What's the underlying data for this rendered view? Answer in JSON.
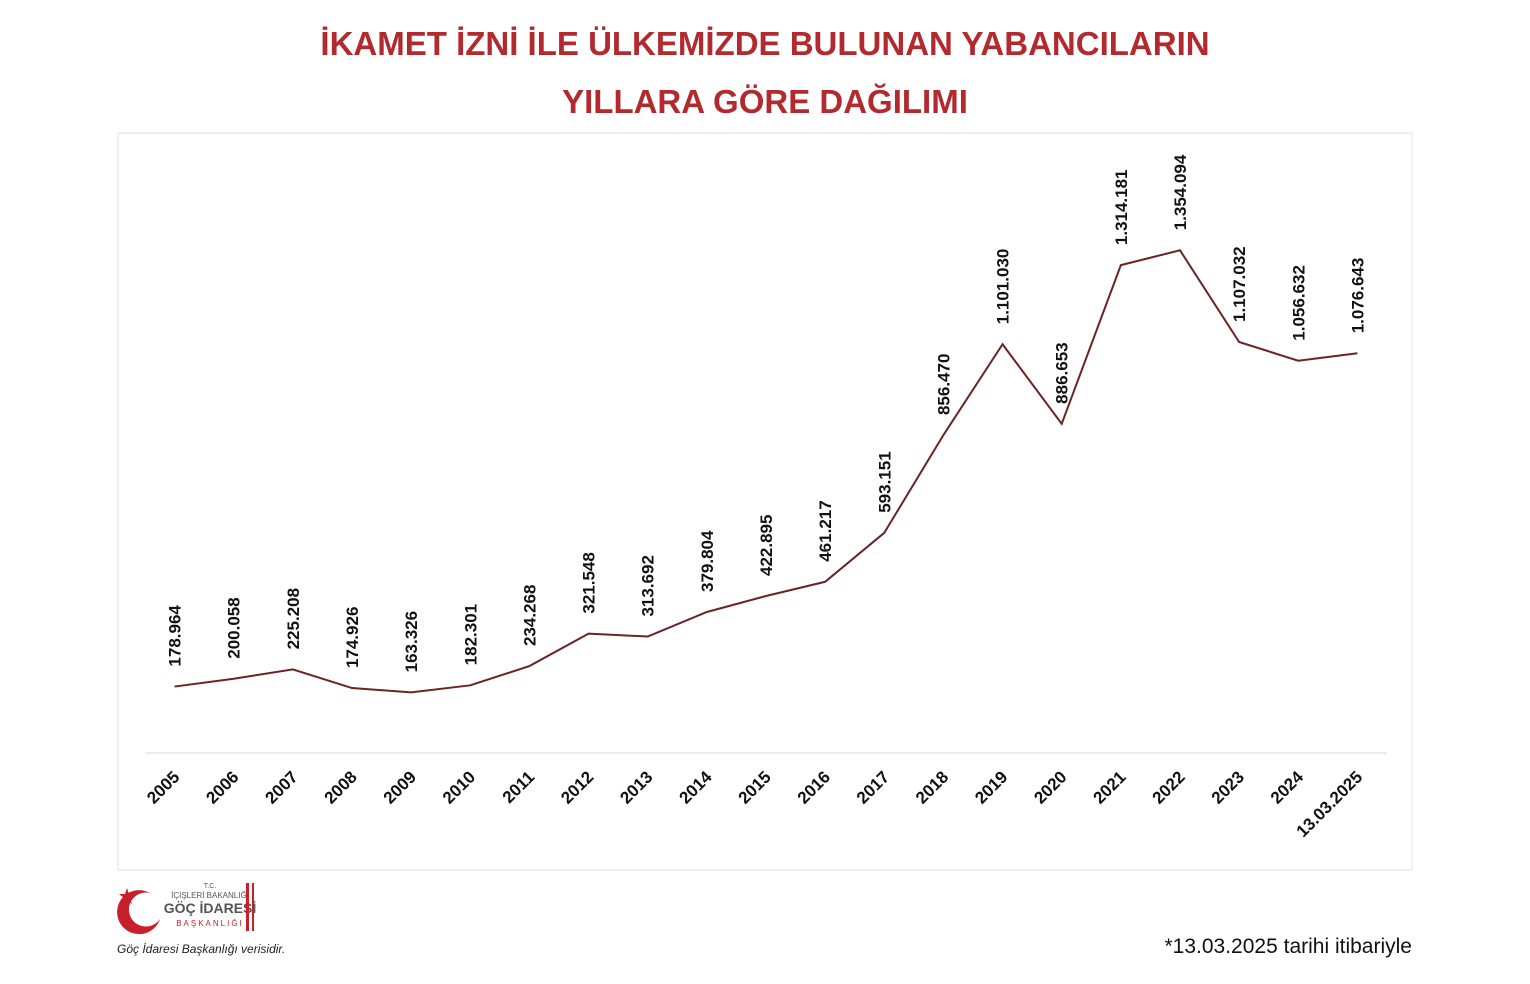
{
  "chart_data": {
    "type": "line",
    "title": [
      "İKAMET İZNİ İLE ÜLKEMİZDE BULUNAN YABANCILARIN",
      "YILLARA GÖRE DAĞILIMI"
    ],
    "categories": [
      "2005",
      "2006",
      "2007",
      "2008",
      "2009",
      "2010",
      "2011",
      "2012",
      "2013",
      "2014",
      "2015",
      "2016",
      "2017",
      "2018",
      "2019",
      "2020",
      "2021",
      "2022",
      "2023",
      "2024",
      "13.03.2025"
    ],
    "series": [
      {
        "color": "#6b2324",
        "values": [
          178964,
          200058,
          225208,
          174926,
          163326,
          182301,
          234268,
          321548,
          313692,
          379804,
          422895,
          461217,
          593151,
          856470,
          1101030,
          886653,
          1314181,
          1354094,
          1107032,
          1056632,
          1076643
        ],
        "value_labels": [
          "178.964",
          "200.058",
          "225.208",
          "174.926",
          "163.326",
          "182.301",
          "234.268",
          "321.548",
          "313.692",
          "379.804",
          "422.895",
          "461.217",
          "593.151",
          "856.470",
          "1.101.030",
          "886.653",
          "1.314.181",
          "1.354.094",
          "1.107.032",
          "1.056.632",
          "1.076.643"
        ]
      }
    ],
    "ylim": [
      0,
      1670000
    ],
    "footnote": "*13.03.2025 tarihi itibariyle",
    "source": "Göç İdaresi Başkanlığı verisidir.",
    "logo": {
      "line1": "T.C.",
      "line2": "İÇİŞLERİ BAKANLIĞI",
      "line3": "GÖÇ İDARESİ",
      "line4": "BAŞKANLIĞI"
    }
  }
}
